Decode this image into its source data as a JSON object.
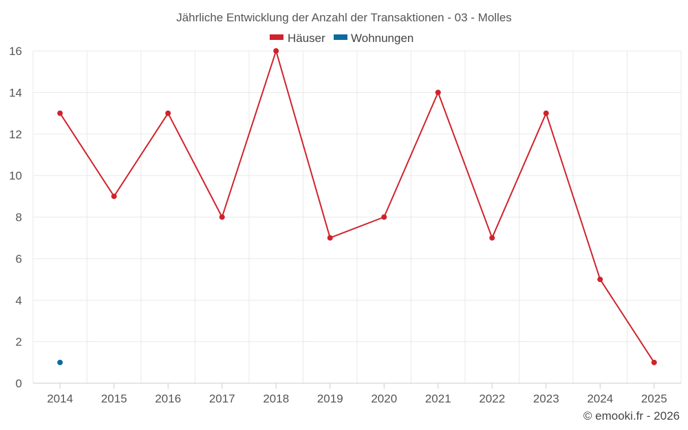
{
  "chart_data": {
    "type": "line",
    "title": "Jährliche Entwicklung der Anzahl der Transaktionen - 03 - Molles",
    "categories": [
      "2014",
      "2015",
      "2016",
      "2017",
      "2018",
      "2019",
      "2020",
      "2021",
      "2022",
      "2023",
      "2024",
      "2025"
    ],
    "ylim": [
      0,
      16
    ],
    "yticks": [
      0,
      2,
      4,
      6,
      8,
      10,
      12,
      14,
      16
    ],
    "grid": true,
    "legend_position": "top-center",
    "series": [
      {
        "name": "Häuser",
        "color": "#d0222b",
        "values": [
          13,
          9,
          13,
          8,
          16,
          7,
          8,
          14,
          7,
          13,
          5,
          1
        ]
      },
      {
        "name": "Wohnungen",
        "color": "#0d6aa0",
        "values": [
          1,
          null,
          null,
          null,
          null,
          null,
          null,
          null,
          null,
          null,
          null,
          null
        ]
      }
    ],
    "credit": "© emooki.fr - 2026"
  }
}
